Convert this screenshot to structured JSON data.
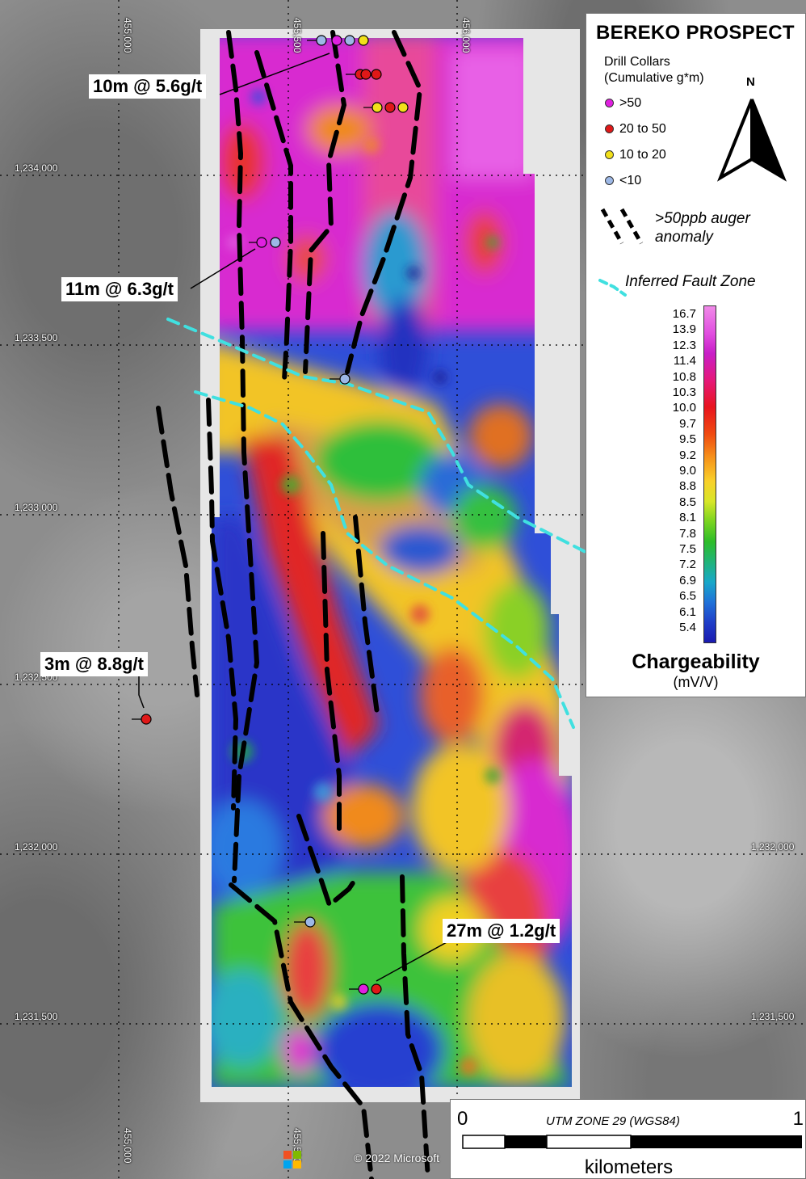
{
  "legend": {
    "title": "BEREKO PROSPECT",
    "collars_title_line1": "Drill Collars",
    "collars_title_line2": "(Cumulative g*m)",
    "north_label": "N",
    "collar_classes": [
      {
        "label": ">50",
        "color": "#e020e0"
      },
      {
        "label": "20  to  50",
        "color": "#e01818"
      },
      {
        "label": "10  to  20",
        "color": "#f2e01a"
      },
      {
        "label": "<10",
        "color": "#9db8e6"
      }
    ],
    "auger_line1": ">50ppb auger",
    "auger_line2": "anomaly",
    "fault_label": "Inferred Fault Zone",
    "fault_color": "#40e0e0",
    "colorbar_ticks": [
      "16.7",
      "13.9",
      "12.3",
      "11.4",
      "10.8",
      "10.3",
      "10.0",
      "9.7",
      "9.5",
      "9.2",
      "9.0",
      "8.8",
      "8.5",
      "8.1",
      "7.8",
      "7.5",
      "7.2",
      "6.9",
      "6.5",
      "6.1",
      "5.4"
    ],
    "chargeability_title": "Chargeability",
    "chargeability_unit": "(mV/V)"
  },
  "grid": {
    "eastings": [
      "455,000",
      "455,500",
      "456,000"
    ],
    "northings_left": [
      "1,234,000",
      "1,233,500",
      "1,233,000",
      "1,232,500",
      "1,232,000",
      "1,231,500"
    ],
    "northings_right": [
      "1,232,000",
      "1,231,500"
    ]
  },
  "callouts": [
    "10m @ 5.6g/t",
    "11m @ 6.3g/t",
    "3m @ 8.8g/t",
    "27m @ 1.2g/t"
  ],
  "scalebar": {
    "start": "0",
    "end": "1",
    "zone": "UTM ZONE 29 (WGS84)",
    "unit": "kilometers"
  },
  "copyright": "© 2022 Microsoft",
  "icons": [
    "north-arrow-icon",
    "microsoft-logo-icon"
  ]
}
